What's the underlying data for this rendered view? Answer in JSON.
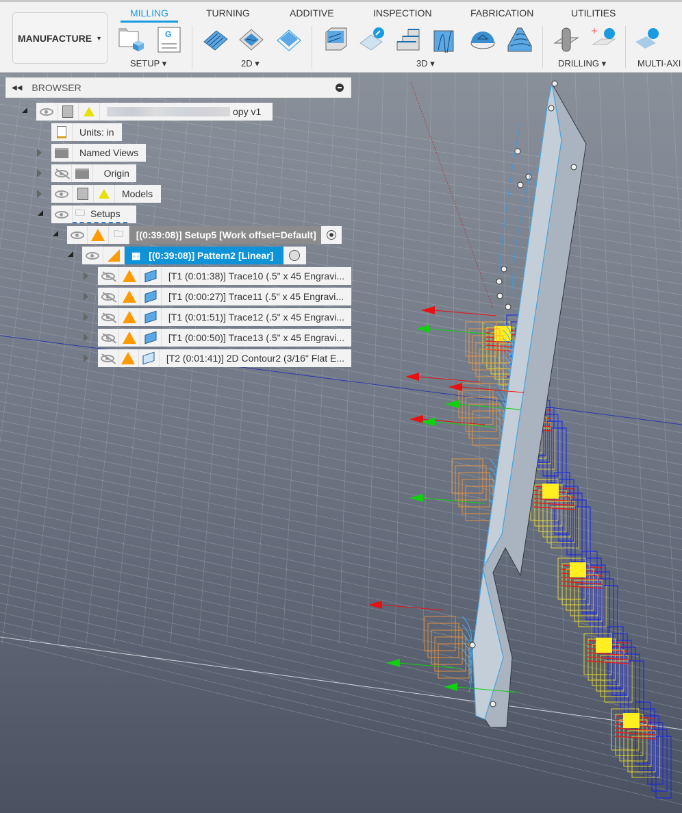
{
  "toolbar": {
    "workspace": "MANUFACTURE",
    "tabs": [
      "MILLING",
      "TURNING",
      "ADDITIVE",
      "INSPECTION",
      "FABRICATION",
      "UTILITIES"
    ],
    "active_tab": "MILLING",
    "groups": [
      "SETUP",
      "2D",
      "3D",
      "DRILLING",
      "MULTI-AXI"
    ],
    "accent": "#1a9ae0"
  },
  "browser": {
    "title": "BROWSER",
    "root": "opy v1",
    "items": {
      "units": "Units: in",
      "named_views": "Named Views",
      "origin": "Origin",
      "models": "Models",
      "setups": "Setups",
      "setup5": "[(0:39:08)] Setup5 [Work offset=Default]",
      "pattern2": "[(0:39:08)] Pattern2 [Linear]"
    },
    "operations": [
      "[T1 (0:01:38)] Trace10 (.5\" x 45 Engravi...",
      "[T1 (0:00:27)] Trace11 (.5\" x 45 Engravi...",
      "[T1 (0:01:51)] Trace12 (.5\" x 45 Engravi...",
      "[T1 (0:00:50)] Trace13 (.5\" x 45 Engravi...",
      "[T2 (0:01:41)] 2D Contour2 (3/16\" Flat E..."
    ],
    "selected_color": "#0f93d8"
  }
}
